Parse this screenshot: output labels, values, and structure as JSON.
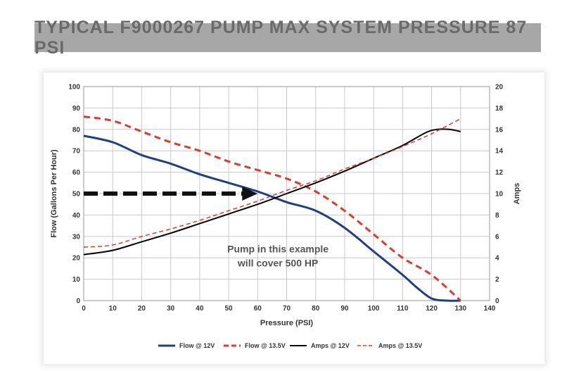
{
  "header": {
    "title": "TYPICAL F9000267 PUMP MAX SYSTEM PRESSURE 87 PSI"
  },
  "chart_data": {
    "type": "line",
    "title": "TYPICAL F9000267 PUMP MAX SYSTEM PRESSURE 87 PSI",
    "xlabel": "Pressure (PSI)",
    "ylabel": "Flow (Gallons Per Hour)",
    "y2label": "Amps",
    "xlim": [
      0,
      140
    ],
    "ylim": [
      0,
      100
    ],
    "y2lim": [
      0,
      20
    ],
    "xticks": [
      "0",
      "10",
      "20",
      "30",
      "40",
      "50",
      "60",
      "70",
      "80",
      "90",
      "100",
      "110",
      "120",
      "130",
      "140"
    ],
    "yticks": [
      "0",
      "10",
      "20",
      "30",
      "40",
      "50",
      "60",
      "70",
      "80",
      "90",
      "100"
    ],
    "y2ticks": [
      "0",
      "2",
      "4",
      "6",
      "8",
      "10",
      "12",
      "14",
      "16",
      "18",
      "20"
    ],
    "grid": true,
    "legend_position": "bottom",
    "annotation": [
      "Pump in this example",
      "will cover 500 HP"
    ],
    "arrow": {
      "from": [
        0,
        50
      ],
      "to": [
        60,
        50
      ]
    },
    "series": [
      {
        "name": "Flow @ 12V",
        "axis": "left",
        "color": "#1f3f85",
        "dash": "solid",
        "width": 3,
        "x": [
          0,
          10,
          20,
          30,
          40,
          50,
          60,
          70,
          80,
          90,
          100,
          110,
          115,
          120,
          125,
          130
        ],
        "y": [
          77,
          74,
          68,
          64,
          59,
          55,
          51,
          46,
          42,
          34,
          23,
          12,
          6,
          1,
          0,
          0
        ]
      },
      {
        "name": "Flow @ 13.5V",
        "axis": "left",
        "color": "#e03a2c",
        "dash": "dashed",
        "width": 3,
        "x": [
          0,
          10,
          20,
          30,
          40,
          50,
          60,
          70,
          80,
          90,
          100,
          110,
          120,
          130
        ],
        "y": [
          86,
          84,
          79,
          74,
          70,
          65,
          61,
          57,
          51,
          42,
          31,
          20,
          12,
          0
        ]
      },
      {
        "name": "Amps @ 12V",
        "axis": "right",
        "color": "#000000",
        "dash": "solid",
        "width": 2,
        "x": [
          0,
          10,
          20,
          30,
          40,
          50,
          60,
          70,
          80,
          90,
          100,
          110,
          118,
          122,
          126,
          130
        ],
        "y": [
          4.3,
          4.7,
          5.5,
          6.3,
          7.2,
          8.1,
          9.0,
          10.0,
          11.0,
          12.1,
          13.3,
          14.5,
          15.7,
          16.0,
          16.0,
          15.8
        ]
      },
      {
        "name": "Amps @ 13.5V",
        "axis": "right",
        "color": "#e03a2c",
        "dash": "dashed",
        "width": 1.5,
        "x": [
          0,
          10,
          20,
          30,
          40,
          50,
          60,
          70,
          80,
          90,
          100,
          110,
          120,
          130
        ],
        "y": [
          5.0,
          5.2,
          6.0,
          6.7,
          7.5,
          8.4,
          9.3,
          10.3,
          11.2,
          12.3,
          13.3,
          14.4,
          15.6,
          17.0
        ]
      }
    ]
  }
}
